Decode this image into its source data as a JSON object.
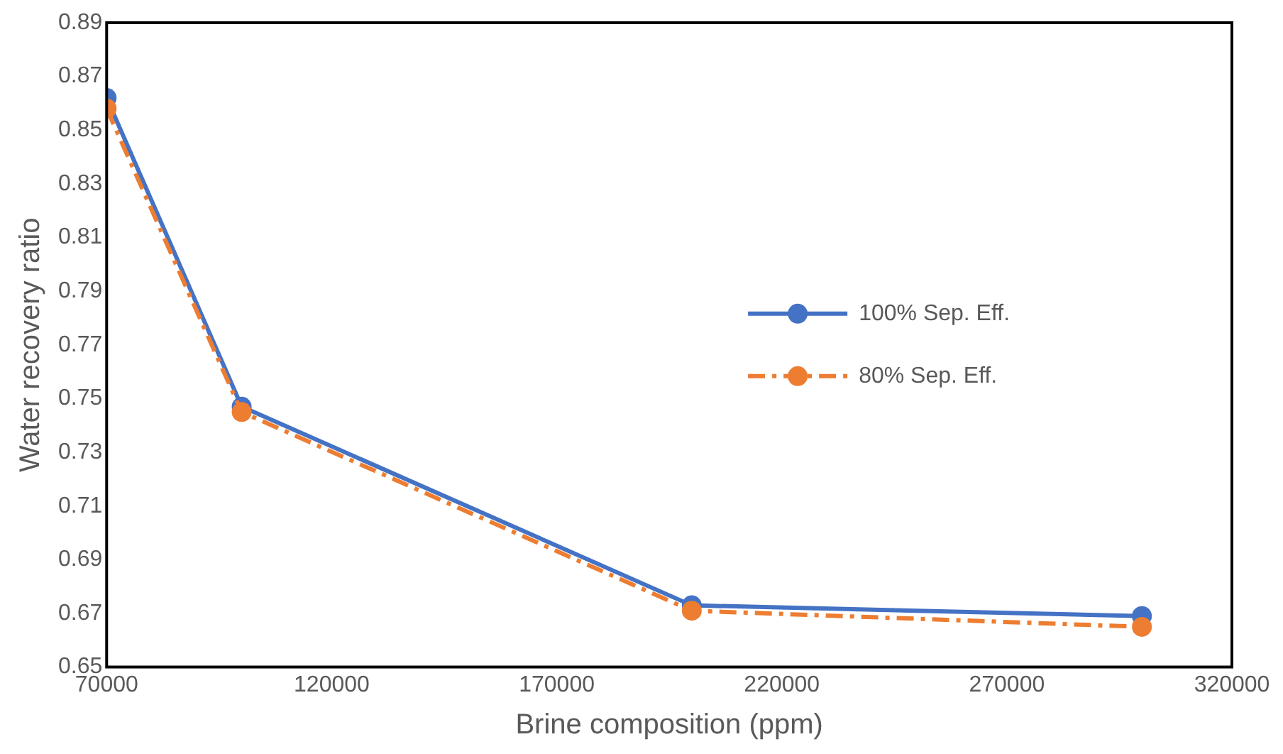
{
  "chart_data": {
    "type": "line",
    "xlabel": "Brine composition (ppm)",
    "ylabel": "Water recovery ratio",
    "x": [
      70000,
      100000,
      200000,
      300000
    ],
    "series": [
      {
        "name": "100% Sep. Eff.",
        "color": "#4472c4",
        "values": [
          0.862,
          0.747,
          0.673,
          0.669
        ],
        "line_style": "solid"
      },
      {
        "name": "80% Sep. Eff.",
        "color": "#ed7d31",
        "values": [
          0.858,
          0.745,
          0.671,
          0.665
        ],
        "line_style": "dashed"
      }
    ],
    "xlim": [
      70000,
      320000
    ],
    "xticks": [
      70000,
      120000,
      170000,
      220000,
      270000,
      320000
    ],
    "ylim": [
      0.65,
      0.89
    ],
    "yticks": [
      0.65,
      0.67,
      0.69,
      0.71,
      0.73,
      0.75,
      0.77,
      0.79,
      0.81,
      0.83,
      0.85,
      0.87,
      0.89
    ],
    "grid": false,
    "legend": "right",
    "marker": "circle"
  }
}
